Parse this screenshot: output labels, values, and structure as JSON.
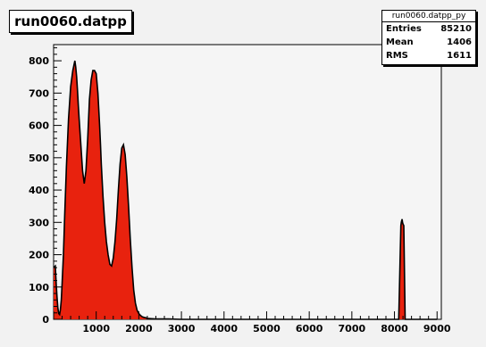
{
  "chart_data": {
    "type": "bar",
    "title": "run0060.datpp",
    "xlabel": "",
    "ylabel": "",
    "xlim": [
      0,
      9100
    ],
    "ylim": [
      0,
      850
    ],
    "x_ticks": [
      1000,
      2000,
      3000,
      4000,
      5000,
      6000,
      7000,
      8000,
      9000
    ],
    "y_ticks": [
      0,
      100,
      200,
      300,
      400,
      500,
      600,
      700,
      800
    ],
    "fill_color": "#e8220e",
    "outline_color": "#000000",
    "stats": {
      "title": "run0060.datpp_py",
      "rows": [
        {
          "label": "Entries",
          "value": "85210"
        },
        {
          "label": "Mean",
          "value": "1406"
        },
        {
          "label": "RMS",
          "value": "1611"
        }
      ]
    },
    "x": [
      0,
      40,
      60,
      80,
      100,
      120,
      140,
      160,
      180,
      200,
      230,
      260,
      300,
      350,
      400,
      450,
      500,
      520,
      540,
      560,
      580,
      600,
      640,
      680,
      720,
      760,
      800,
      840,
      880,
      920,
      960,
      1000,
      1040,
      1080,
      1100,
      1120,
      1160,
      1200,
      1240,
      1280,
      1320,
      1360,
      1400,
      1440,
      1480,
      1520,
      1560,
      1600,
      1640,
      1680,
      1720,
      1760,
      1800,
      1840,
      1880,
      1920,
      1960,
      2000,
      2040,
      2080,
      2120,
      2160,
      2200,
      2300,
      2400,
      2500,
      2700,
      3000,
      3500,
      4000,
      5000,
      6000,
      7000,
      8000,
      8100,
      8150,
      8160,
      8170,
      8180,
      8190,
      8200,
      8220,
      8250,
      8300,
      8500,
      9000
    ],
    "values": [
      160,
      165,
      110,
      70,
      35,
      18,
      15,
      30,
      60,
      110,
      200,
      320,
      470,
      620,
      720,
      770,
      800,
      780,
      750,
      710,
      660,
      620,
      540,
      460,
      420,
      460,
      560,
      680,
      740,
      770,
      770,
      760,
      700,
      600,
      540,
      480,
      380,
      300,
      240,
      200,
      170,
      165,
      190,
      240,
      310,
      400,
      480,
      530,
      540,
      510,
      440,
      350,
      250,
      160,
      90,
      50,
      28,
      18,
      12,
      8,
      6,
      5,
      3,
      2,
      1,
      1,
      1,
      0,
      0,
      0,
      0,
      0,
      0,
      0,
      0,
      290,
      300,
      305,
      310,
      300,
      295,
      290,
      0,
      0,
      0,
      0
    ]
  }
}
